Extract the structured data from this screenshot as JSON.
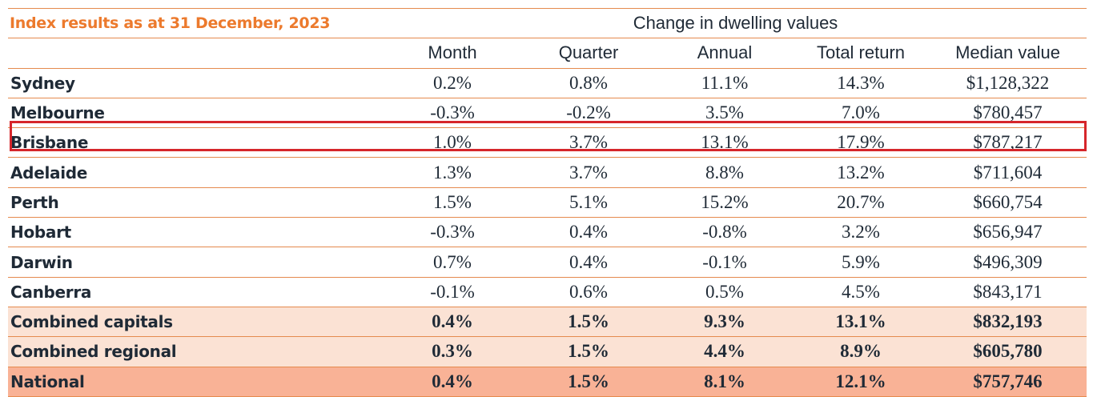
{
  "title": "Index results as at 31 December, 2023",
  "group_header": "Change in dwelling values",
  "columns": [
    "Month",
    "Quarter",
    "Annual",
    "Total return",
    "Median value"
  ],
  "rows": [
    {
      "name": "Sydney",
      "values": [
        "0.2%",
        "0.8%",
        "11.1%",
        "14.3%",
        "$1,128,322"
      ]
    },
    {
      "name": "Melbourne",
      "values": [
        "-0.3%",
        "-0.2%",
        "3.5%",
        "7.0%",
        "$780,457"
      ]
    },
    {
      "name": "Brisbane",
      "values": [
        "1.0%",
        "3.7%",
        "13.1%",
        "17.9%",
        "$787,217"
      ]
    },
    {
      "name": "Adelaide",
      "values": [
        "1.3%",
        "3.7%",
        "8.8%",
        "13.2%",
        "$711,604"
      ]
    },
    {
      "name": "Perth",
      "values": [
        "1.5%",
        "5.1%",
        "15.2%",
        "20.7%",
        "$660,754"
      ]
    },
    {
      "name": "Hobart",
      "values": [
        "-0.3%",
        "0.4%",
        "-0.8%",
        "3.2%",
        "$656,947"
      ]
    },
    {
      "name": "Darwin",
      "values": [
        "0.7%",
        "0.4%",
        "-0.1%",
        "5.9%",
        "$496,309"
      ]
    },
    {
      "name": "Canberra",
      "values": [
        "-0.1%",
        "0.6%",
        "0.5%",
        "4.5%",
        "$843,171"
      ]
    },
    {
      "name": "Combined capitals",
      "values": [
        "0.4%",
        "1.5%",
        "9.3%",
        "13.1%",
        "$832,193"
      ]
    },
    {
      "name": "Combined regional",
      "values": [
        "0.3%",
        "1.5%",
        "4.4%",
        "8.9%",
        "$605,780"
      ]
    },
    {
      "name": "National",
      "values": [
        "0.4%",
        "1.5%",
        "8.1%",
        "12.1%",
        "$757,746"
      ]
    }
  ],
  "colors": {
    "title": "#ec7a2d",
    "rule": "#e58a4e",
    "summary_light": "#fbe2d4",
    "summary_dark": "#f9b296",
    "highlight_box": "#d6262b",
    "text": "#1f2a36"
  }
}
